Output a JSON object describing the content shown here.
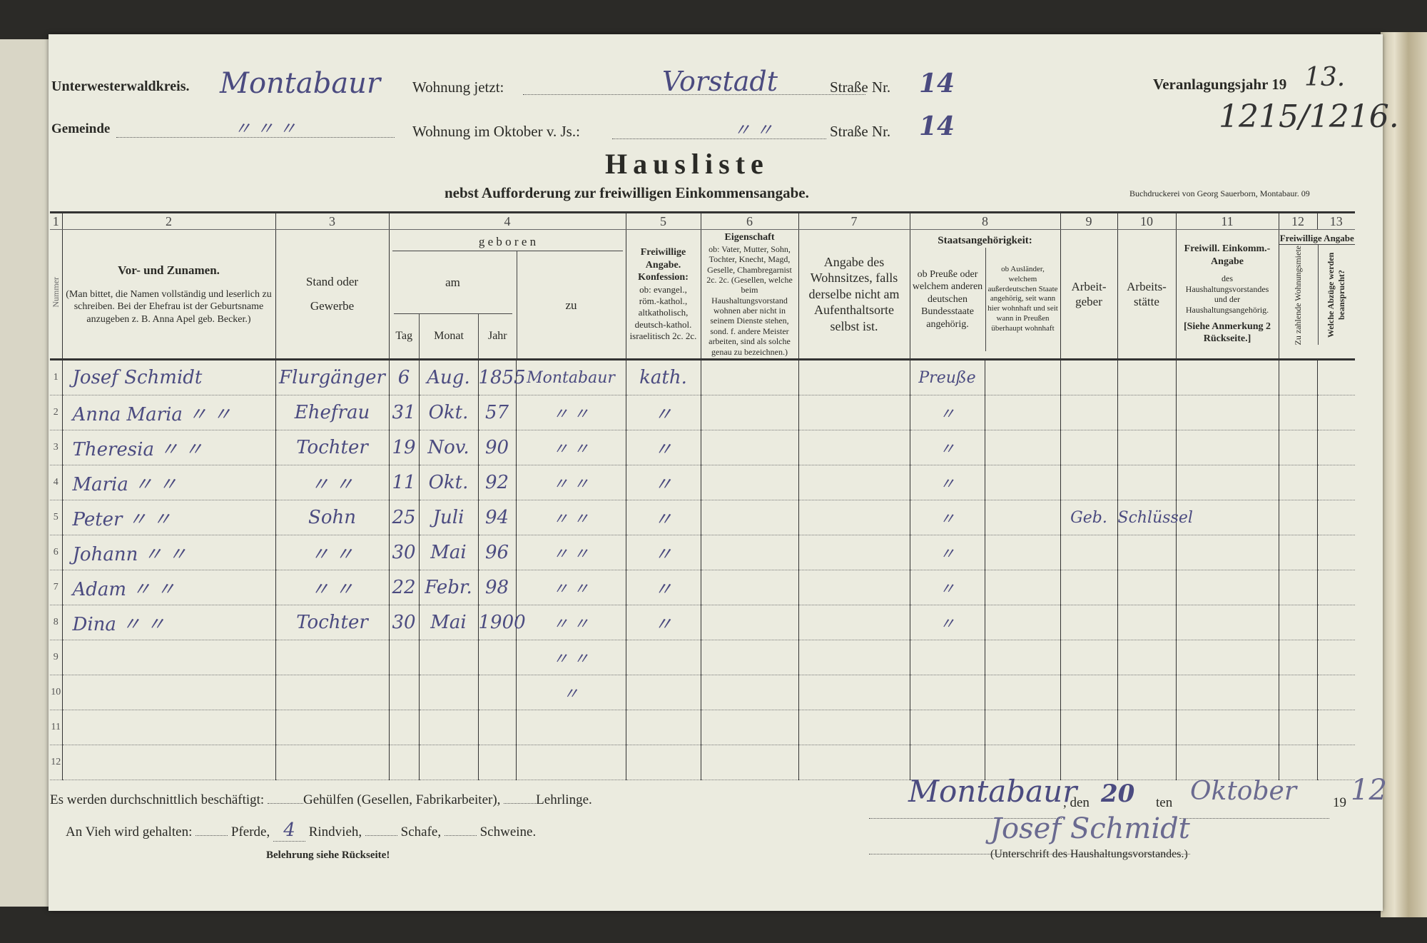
{
  "header": {
    "kreis_label": "Unterwesterwaldkreis.",
    "kreis_value": "Montabaur",
    "wohnung_jetzt_label": "Wohnung jetzt:",
    "wohnung_jetzt_value": "Vorstadt",
    "strasse_nr_label": "Straße Nr.",
    "strasse_nr_value": "14",
    "gemeinde_label": "Gemeinde",
    "gemeinde_value": "〃 〃 〃",
    "wohnung_oktober_label": "Wohnung im Oktober v. Js.:",
    "wohnung_oktober_value": "〃 〃",
    "strasse_nr2_label": "Straße Nr.",
    "strasse_nr2_value": "14",
    "veranlagungsjahr_label": "Veranlagungsjahr 19",
    "veranlagungsjahr_value": "13.",
    "reference_number": "1215/1216.",
    "title": "Hausliste",
    "subtitle": "nebst Aufforderung zur freiwilligen Einkommensangabe.",
    "printer": "Buchdruckerei von Georg Sauerborn, Montabaur. 09"
  },
  "table": {
    "column_numbers": [
      "1",
      "2",
      "3",
      "4",
      "5",
      "6",
      "7",
      "8",
      "9",
      "10",
      "11",
      "12",
      "13"
    ],
    "headers": {
      "nummer": "Nummer",
      "name_title": "Vor- und Zunamen.",
      "name_note": "(Man bittet, die Namen vollständig und leserlich zu schreiben. Bei der Ehefrau ist der Geburtsname anzugeben z. B. Anna Apel geb. Becker.)",
      "stand": "Stand oder Gewerbe",
      "geboren": "g e b o r e n",
      "am": "am",
      "tag": "Tag",
      "monat": "Monat",
      "jahr": "Jahr",
      "zu": "zu",
      "konfession_title": "Freiwillige Angabe. Konfession:",
      "konfession_note": "ob: evangel., röm.-kathol., altkatholisch, deutsch-kathol. israelitisch 2c. 2c.",
      "eigenschaft_title": "Eigenschaft",
      "eigenschaft_note": "ob: Vater, Mutter, Sohn, Tochter, Knecht, Magd, Geselle, Chambregarnist 2c. 2c. (Gesellen, welche beim Haushaltungsvorstand wohnen aber nicht in seinem Dienste stehen, sond. f. andere Meister arbeiten, sind als solche genau zu bezeichnen.)",
      "wohnsitz": "Angabe des Wohnsitzes, falls derselbe nicht am Aufenthaltsorte selbst ist.",
      "staats_title": "Staatsangehörigkeit:",
      "staats_preusse": "ob Preuße oder welchem anderen deutschen Bundesstaate angehörig.",
      "staats_auslaender": "ob Ausländer, welchem außerdeutschen Staate angehörig, seit wann hier wohnhaft und seit wann in Preußen überhaupt wohnhaft",
      "arbeitgeber": "Arbeit-geber",
      "arbeitsstaette": "Arbeits-stätte",
      "einkommen_title": "Freiwill. Einkomm.-Angabe",
      "einkommen_note": "des Haushaltungsvorstandes und der Haushaltungsangehörig.",
      "einkommen_ref": "[Siehe Anmerkung 2 Rückseite.]",
      "freiwillige_angabe": "Freiwillige Angabe",
      "miete": "Zu zahlende Wohnungsmiete",
      "abzuege": "Welche Abzüge werden beansprucht?"
    },
    "rows": [
      {
        "nr": "1",
        "name": "Josef Schmidt",
        "stand": "Flurgänger",
        "tag": "6",
        "monat": "Aug.",
        "jahr": "1855",
        "ort": "Montabaur",
        "konfession": "kath.",
        "eigenschaft": "",
        "wohnsitz": "",
        "preusse": "Preuße",
        "auslaender": "",
        "arbeitgeber": "",
        "arbeitsstaette": "",
        "einkommen": "",
        "miete": "",
        "abzuege": ""
      },
      {
        "nr": "2",
        "name": "Anna Maria 〃 〃",
        "stand": "Ehefrau",
        "tag": "31",
        "monat": "Okt.",
        "jahr": "57",
        "ort": "〃 〃",
        "konfession": "〃",
        "eigenschaft": "",
        "wohnsitz": "",
        "preusse": "〃",
        "auslaender": "",
        "arbeitgeber": "",
        "arbeitsstaette": "",
        "einkommen": "",
        "miete": "",
        "abzuege": ""
      },
      {
        "nr": "3",
        "name": "Theresia 〃 〃",
        "stand": "Tochter",
        "tag": "19",
        "monat": "Nov.",
        "jahr": "90",
        "ort": "〃 〃",
        "konfession": "〃",
        "eigenschaft": "",
        "wohnsitz": "",
        "preusse": "〃",
        "auslaender": "",
        "arbeitgeber": "",
        "arbeitsstaette": "",
        "einkommen": "",
        "miete": "",
        "abzuege": ""
      },
      {
        "nr": "4",
        "name": "Maria 〃 〃",
        "stand": "〃 〃",
        "tag": "11",
        "monat": "Okt.",
        "jahr": "92",
        "ort": "〃 〃",
        "konfession": "〃",
        "eigenschaft": "",
        "wohnsitz": "",
        "preusse": "〃",
        "auslaender": "",
        "arbeitgeber": "",
        "arbeitsstaette": "",
        "einkommen": "",
        "miete": "",
        "abzuege": ""
      },
      {
        "nr": "5",
        "name": "Peter 〃 〃",
        "stand": "Sohn",
        "tag": "25",
        "monat": "Juli",
        "jahr": "94",
        "ort": "〃 〃",
        "konfession": "〃",
        "eigenschaft": "",
        "wohnsitz": "",
        "preusse": "〃",
        "auslaender": "",
        "arbeitgeber": "Geb.",
        "arbeitsstaette": "Schlüssel",
        "einkommen": "",
        "miete": "",
        "abzuege": ""
      },
      {
        "nr": "6",
        "name": "Johann 〃 〃",
        "stand": "〃 〃",
        "tag": "30",
        "monat": "Mai",
        "jahr": "96",
        "ort": "〃 〃",
        "konfession": "〃",
        "eigenschaft": "",
        "wohnsitz": "",
        "preusse": "〃",
        "auslaender": "",
        "arbeitgeber": "",
        "arbeitsstaette": "",
        "einkommen": "",
        "miete": "",
        "abzuege": ""
      },
      {
        "nr": "7",
        "name": "Adam 〃 〃",
        "stand": "〃 〃",
        "tag": "22",
        "monat": "Febr.",
        "jahr": "98",
        "ort": "〃 〃",
        "konfession": "〃",
        "eigenschaft": "",
        "wohnsitz": "",
        "preusse": "〃",
        "auslaender": "",
        "arbeitgeber": "",
        "arbeitsstaette": "",
        "einkommen": "",
        "miete": "",
        "abzuege": ""
      },
      {
        "nr": "8",
        "name": "Dina 〃 〃",
        "stand": "Tochter",
        "tag": "30",
        "monat": "Mai",
        "jahr": "1900",
        "ort": "〃 〃",
        "konfession": "〃",
        "eigenschaft": "",
        "wohnsitz": "",
        "preusse": "〃",
        "auslaender": "",
        "arbeitgeber": "",
        "arbeitsstaette": "",
        "einkommen": "",
        "miete": "",
        "abzuege": ""
      },
      {
        "nr": "9",
        "name": "",
        "stand": "",
        "tag": "",
        "monat": "",
        "jahr": "",
        "ort": "〃 〃",
        "konfession": "",
        "eigenschaft": "",
        "wohnsitz": "",
        "preusse": "",
        "auslaender": "",
        "arbeitgeber": "",
        "arbeitsstaette": "",
        "einkommen": "",
        "miete": "",
        "abzuege": ""
      },
      {
        "nr": "10",
        "name": "",
        "stand": "",
        "tag": "",
        "monat": "",
        "jahr": "",
        "ort": "〃",
        "konfession": "",
        "eigenschaft": "",
        "wohnsitz": "",
        "preusse": "",
        "auslaender": "",
        "arbeitgeber": "",
        "arbeitsstaette": "",
        "einkommen": "",
        "miete": "",
        "abzuege": ""
      },
      {
        "nr": "11",
        "name": "",
        "stand": "",
        "tag": "",
        "monat": "",
        "jahr": "",
        "ort": "",
        "konfession": "",
        "eigenschaft": "",
        "wohnsitz": "",
        "preusse": "",
        "auslaender": "",
        "arbeitgeber": "",
        "arbeitsstaette": "",
        "einkommen": "",
        "miete": "",
        "abzuege": ""
      },
      {
        "nr": "12",
        "name": "",
        "stand": "",
        "tag": "",
        "monat": "",
        "jahr": "",
        "ort": "",
        "konfession": "",
        "eigenschaft": "",
        "wohnsitz": "",
        "preusse": "",
        "auslaender": "",
        "arbeitgeber": "",
        "arbeitsstaette": "",
        "einkommen": "",
        "miete": "",
        "abzuege": ""
      }
    ]
  },
  "footer": {
    "beschaeftigt_label": "Es werden durchschnittlich beschäftigt:",
    "gehuelfen_label": "Gehülfen (Gesellen, Fabrikarbeiter),",
    "lehrlinge_label": "Lehrlinge.",
    "vieh_label": "An Vieh wird gehalten:",
    "pferde_label": "Pferde,",
    "rindvieh_value": "4",
    "rindvieh_label": "Rindvieh,",
    "schafe_label": "Schafe,",
    "schweine_label": "Schweine.",
    "belehrung": "Belehrung siehe Rückseite!",
    "place": "Montabaur",
    "den_label": ", den",
    "day": "20",
    "ten_label": "ten",
    "month": "Oktober",
    "year_prefix": "19",
    "year_suffix": "12",
    "signature": "Josef Schmidt",
    "signature_caption": "(Unterschrift des Haushaltungsvorstandes.)"
  },
  "colors": {
    "ink": "#4b4b80",
    "paper": "#ebebdf",
    "print": "#2a2a26"
  }
}
